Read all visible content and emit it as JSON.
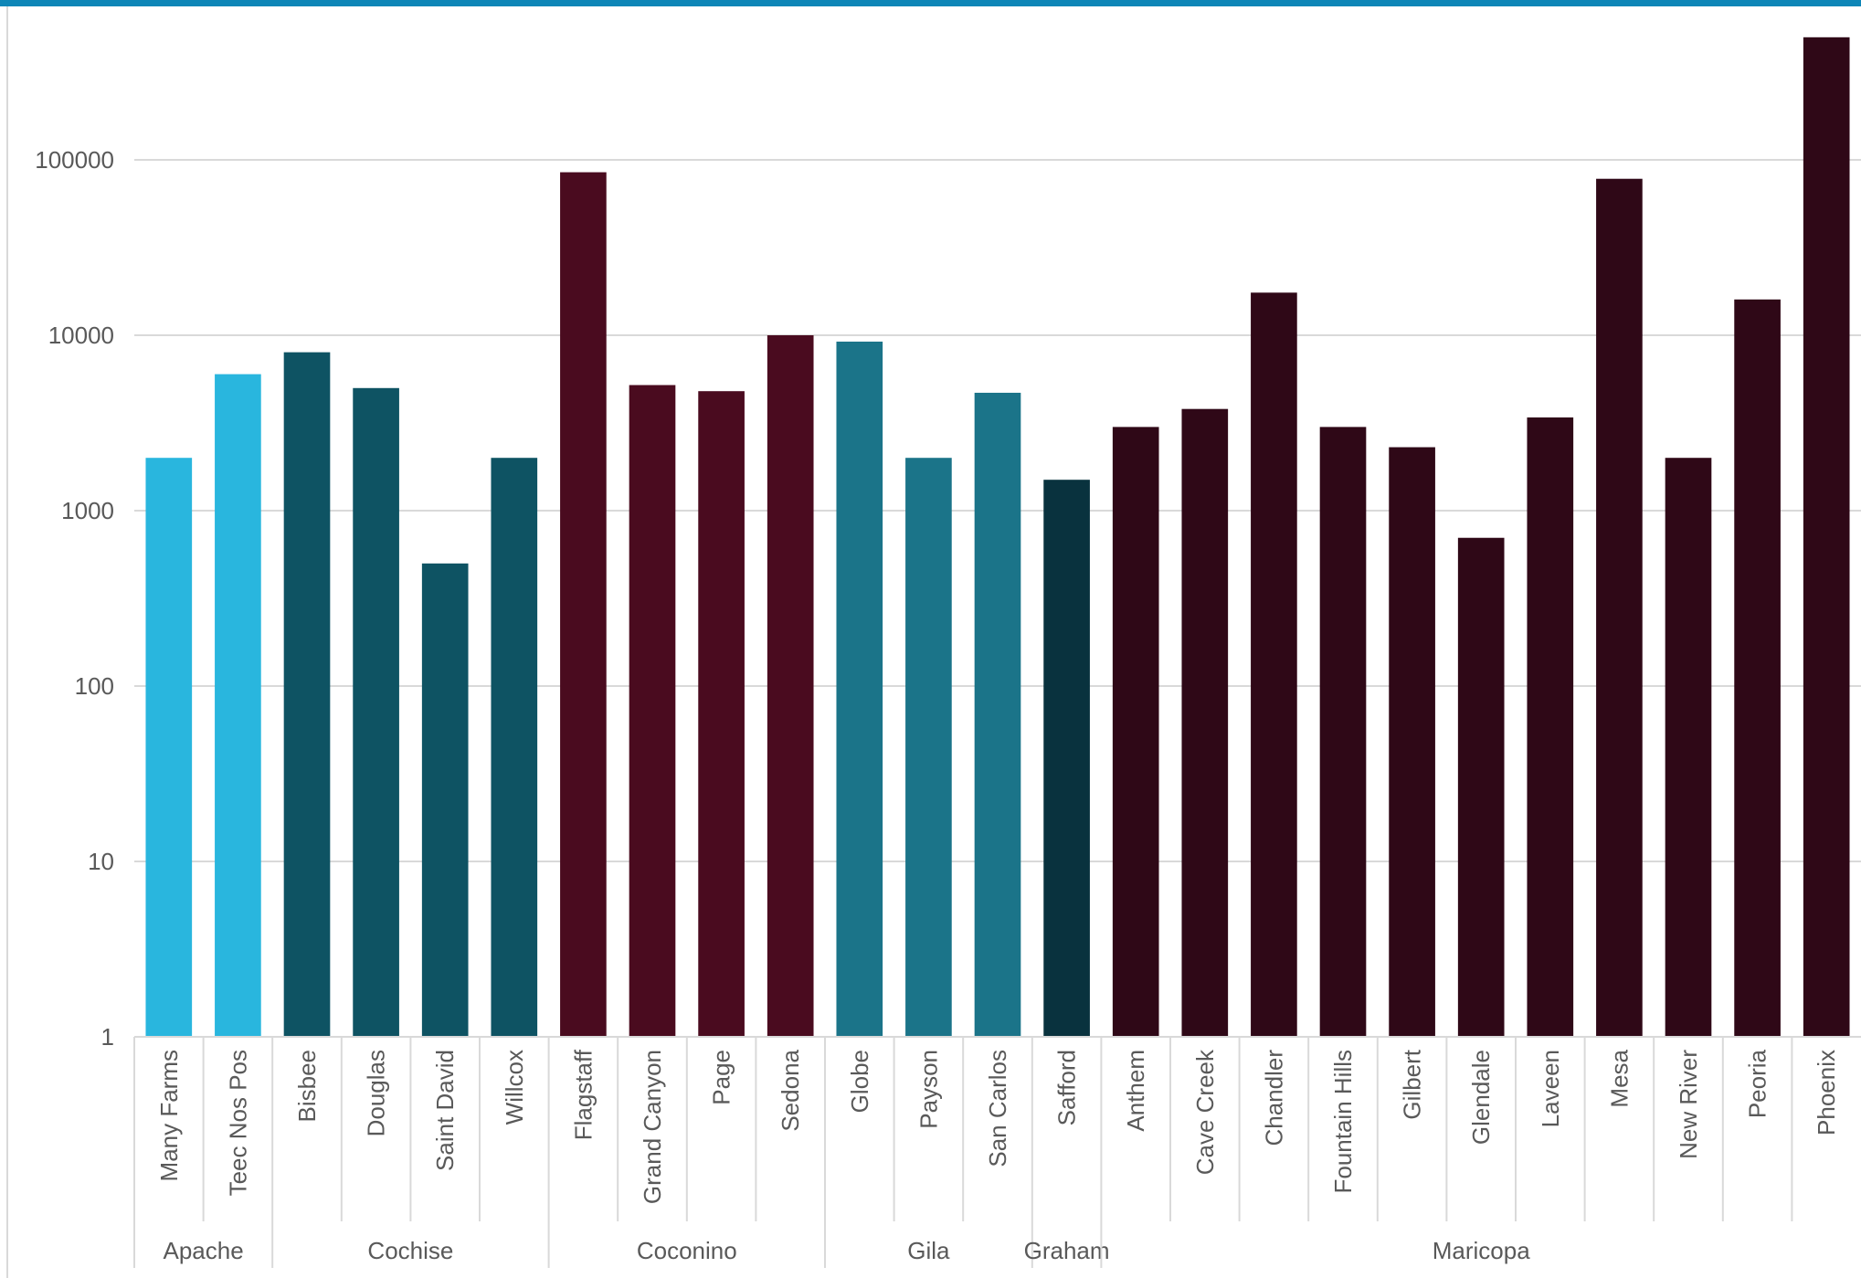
{
  "chart_data": {
    "type": "bar",
    "title": "",
    "xlabel": "",
    "ylabel": "",
    "y_scale": "log",
    "ylim": [
      1,
      1000000
    ],
    "y_ticks": [
      "1",
      "10",
      "100",
      "1000",
      "10000",
      "100000"
    ],
    "grid": true,
    "legend": "none",
    "groups": [
      {
        "name": "Apache",
        "color": "#29B6DE",
        "categories": [
          "Many Farms",
          "Teec Nos Pos"
        ],
        "values": [
          2000,
          6000
        ]
      },
      {
        "name": "Cochise",
        "color": "#0E5363",
        "categories": [
          "Bisbee",
          "Douglas",
          "Saint David",
          "Willcox"
        ],
        "values": [
          8000,
          5000,
          500,
          2000
        ]
      },
      {
        "name": "Coconino",
        "color": "#4A0B1F",
        "categories": [
          "Flagstaff",
          "Grand Canyon",
          "Page",
          "Sedona"
        ],
        "values": [
          85000,
          5200,
          4800,
          10000
        ]
      },
      {
        "name": "Gila",
        "color": "#1B7489",
        "categories": [
          "Globe",
          "Payson",
          "San Carlos"
        ],
        "values": [
          9200,
          2000,
          4700
        ]
      },
      {
        "name": "Graham",
        "color": "#09323E",
        "categories": [
          "Safford"
        ],
        "values": [
          1500
        ]
      },
      {
        "name": "Maricopa",
        "color": "#2F0817",
        "categories": [
          "Anthem",
          "Cave Creek",
          "Chandler",
          "Fountain Hills",
          "Gilbert",
          "Glendale",
          "Laveen",
          "Mesa",
          "New River",
          "Peoria",
          "Phoenix"
        ],
        "values": [
          3000,
          3800,
          17500,
          3000,
          2300,
          700,
          3400,
          78000,
          2000,
          16000,
          500000
        ]
      }
    ]
  },
  "colors": {
    "top_bar": "#0E86B7",
    "grid": "#D9D9D9",
    "axis_text": "#595959"
  }
}
